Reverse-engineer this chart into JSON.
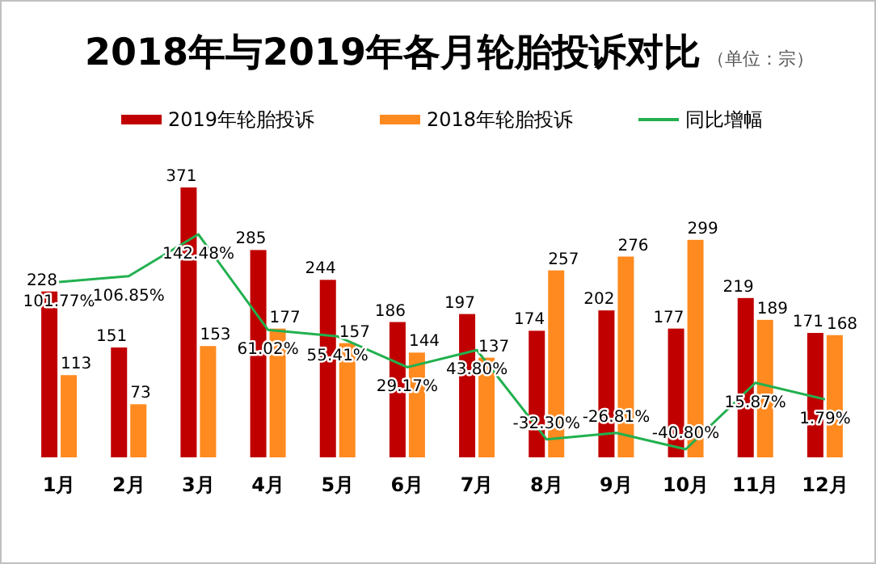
{
  "chart_data": {
    "type": "bar",
    "title": "2018年与2019年各月轮胎投诉对比",
    "subtitle": "（单位：宗）",
    "categories": [
      "1月",
      "2月",
      "3月",
      "4月",
      "5月",
      "6月",
      "7月",
      "8月",
      "9月",
      "10月",
      "11月",
      "12月"
    ],
    "series": [
      {
        "name": "2019年轮胎投诉",
        "color": "#c00000",
        "values": [
          228,
          151,
          371,
          285,
          244,
          186,
          197,
          174,
          202,
          177,
          219,
          171
        ]
      },
      {
        "name": "2018年轮胎投诉",
        "color": "#ff8a1f",
        "values": [
          113,
          73,
          153,
          177,
          157,
          144,
          137,
          257,
          276,
          299,
          189,
          168
        ]
      },
      {
        "name": "同比增幅",
        "type": "line",
        "axis": "y2",
        "color": "#22b04f",
        "values": [
          101.77,
          106.85,
          142.48,
          61.02,
          55.41,
          29.17,
          43.8,
          -32.3,
          -26.81,
          -40.8,
          15.87,
          1.79
        ],
        "value_labels": [
          "101.77%",
          "106.85%",
          "142.48%",
          "61.02%",
          "55.41%",
          "29.17%",
          "43.80%",
          "-32.30%",
          "-26.81%",
          "-40.80%",
          "15.87%",
          "1.79%"
        ]
      }
    ],
    "tick_labels": "x",
    "data_labels": true,
    "legend": "top"
  }
}
